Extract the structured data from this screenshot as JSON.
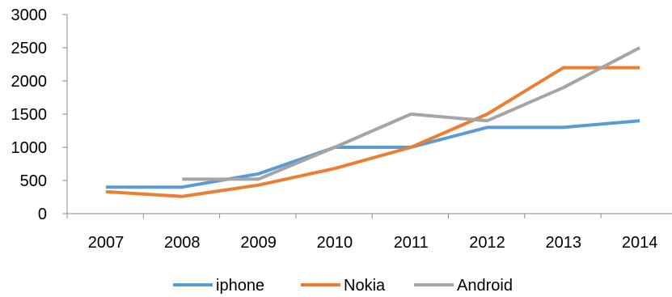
{
  "chart_data": {
    "type": "line",
    "title": "",
    "xlabel": "",
    "ylabel": "",
    "categories": [
      "2007",
      "2008",
      "2009",
      "2010",
      "2011",
      "2012",
      "2013",
      "2014"
    ],
    "ylim": [
      0,
      3000
    ],
    "yticks": [
      "0",
      "500",
      "1000",
      "1500",
      "2000",
      "2500",
      "3000"
    ],
    "grid": false,
    "legend": "bottom",
    "series": [
      {
        "name": "iphone",
        "color": "#5B9BD5",
        "values": [
          400,
          400,
          600,
          1000,
          1000,
          1300,
          1300,
          1400
        ]
      },
      {
        "name": "Nokia",
        "color": "#ED7D31",
        "values": [
          330,
          260,
          430,
          680,
          1000,
          1500,
          2200,
          2200
        ]
      },
      {
        "name": "Android",
        "color": "#A5A5A5",
        "values": [
          null,
          520,
          520,
          1000,
          1500,
          1400,
          1900,
          2500
        ]
      }
    ]
  }
}
